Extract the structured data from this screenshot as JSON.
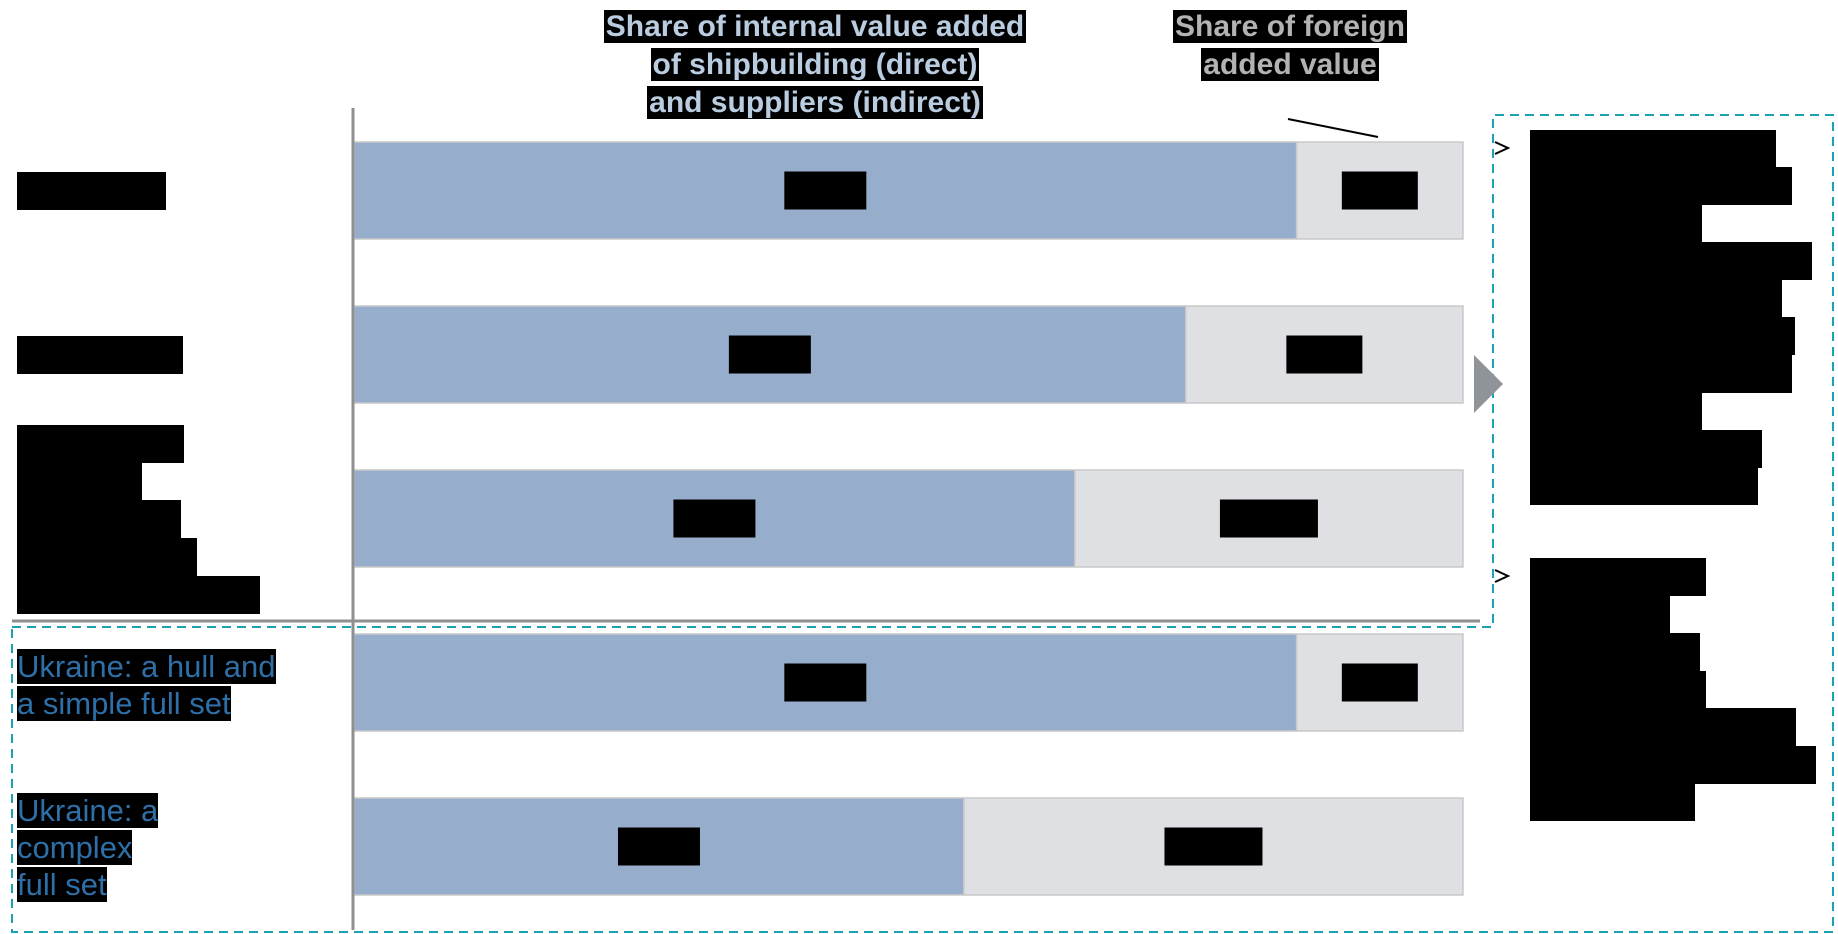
{
  "headers": {
    "domestic": [
      "Share of internal value added",
      "of shipbuilding (direct)",
      "and suppliers (indirect)"
    ],
    "foreign": [
      "Share of foreign",
      "added value"
    ]
  },
  "labels": {
    "ukraine_simple": [
      "Ukraine: a hull and",
      "a simple full set"
    ],
    "ukraine_complex": [
      "Ukraine: a",
      "complex",
      "full set"
    ]
  },
  "colors": {
    "domestic": "#96aecb",
    "foreign": "#dfe0e4",
    "bar_border": "#c9c9c9",
    "axis": "#8f8f8f",
    "dashed_box": "#1aa3b5",
    "arrow": "#8f9499",
    "domestic_header_text": "#b9cce0",
    "foreign_header_text": "#b3b3b3",
    "ukraine_label_text": "#2e6fa8"
  },
  "chart_data": {
    "type": "bar",
    "orientation": "horizontal",
    "stacked": true,
    "normalized": true,
    "categories": [
      "",
      "",
      "",
      "Ukraine: a hull and a simple full set",
      "Ukraine: a complex full set"
    ],
    "series": [
      {
        "name": "Share of internal value added of shipbuilding (direct) and suppliers (indirect)",
        "values": [
          85,
          75,
          65,
          85,
          55
        ]
      },
      {
        "name": "Share of foreign added value",
        "values": [
          15,
          25,
          35,
          15,
          45
        ]
      }
    ],
    "xlim": [
      0,
      100
    ],
    "grid": false,
    "legend": "header labels above bars"
  }
}
